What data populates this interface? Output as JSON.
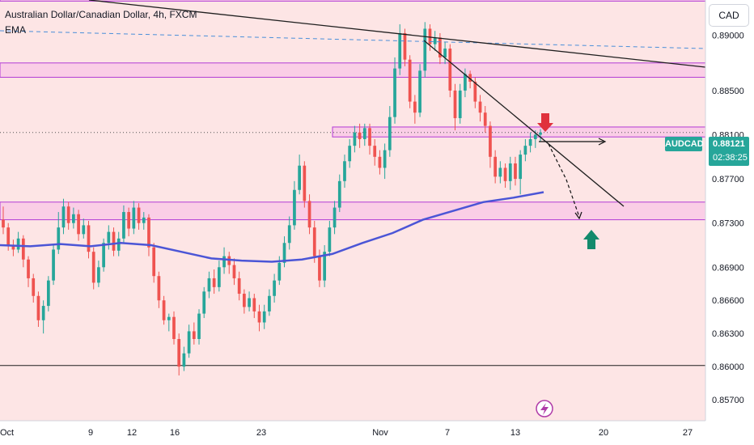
{
  "header": {
    "title": "Australian Dollar/Canadian Dollar, 4h, FXCM",
    "indicator": "EMA"
  },
  "currency_label": "CAD",
  "symbol_tag": "AUDCAD",
  "price_badge": {
    "value": "0.88121",
    "countdown": "02:38:25"
  },
  "colors": {
    "background": "#fde5e5",
    "up": "#26a69a",
    "down": "#ef5350",
    "ema": "#4b55d6",
    "zone_border": "#b23bd6",
    "zone_fill": "#f8c6e6",
    "arrow_down": "#e0313c",
    "arrow_up": "#138a6c",
    "trendline": "#1f1f1f",
    "dashed_level": "#4a8fd9"
  },
  "icons": [
    "red-down-arrow-icon",
    "green-up-arrow-icon",
    "lightning-badge-icon"
  ],
  "chart_data": {
    "type": "candlestick",
    "title": "Australian Dollar/Canadian Dollar, 4h, FXCM",
    "x_tick_labels": [
      "Oct",
      "9",
      "12",
      "16",
      "23",
      "Nov",
      "7",
      "13",
      "20",
      "27"
    ],
    "y_tick_labels": [
      "0.89000",
      "0.88500",
      "0.88100",
      "0.87700",
      "0.87300",
      "0.86900",
      "0.86600",
      "0.86300",
      "0.86000",
      "0.85700"
    ],
    "y_ticks": [
      0.89,
      0.885,
      0.881,
      0.877,
      0.873,
      0.869,
      0.866,
      0.863,
      0.86,
      0.857
    ],
    "ylim": [
      0.8551,
      0.8932
    ],
    "zones": [
      {
        "low": 0.8862,
        "high": 0.8875
      },
      {
        "low": 0.8808,
        "high": 0.8817
      },
      {
        "low": 0.8733,
        "high": 0.8749
      },
      {
        "low": 0.8931,
        "high": 0.8935
      }
    ],
    "horizontal_lines": [
      {
        "price": 0.8601,
        "style": "solid"
      },
      {
        "price": 0.8812,
        "style": "dotted"
      }
    ],
    "ema_series": [
      0.871,
      0.8709,
      0.8711,
      0.8709,
      0.8712,
      0.871,
      0.8704,
      0.8698,
      0.8696,
      0.8695,
      0.8697,
      0.8702,
      0.8712,
      0.8721,
      0.8733,
      0.8741,
      0.8749,
      0.8753,
      0.8758
    ],
    "candles": [
      [
        0.8733,
        0.8726,
        0.8745,
        0.872
      ],
      [
        0.8726,
        0.871,
        0.873,
        0.8705
      ],
      [
        0.871,
        0.8706,
        0.8715,
        0.87
      ],
      [
        0.8706,
        0.8716,
        0.8722,
        0.8703
      ],
      [
        0.8716,
        0.8697,
        0.8719,
        0.869
      ],
      [
        0.8697,
        0.868,
        0.87,
        0.8672
      ],
      [
        0.868,
        0.8664,
        0.8684,
        0.8658
      ],
      [
        0.8664,
        0.8642,
        0.8668,
        0.8636
      ],
      [
        0.8642,
        0.8655,
        0.866,
        0.863
      ],
      [
        0.8655,
        0.8678,
        0.8682,
        0.865
      ],
      [
        0.8678,
        0.8706,
        0.871,
        0.8674
      ],
      [
        0.8706,
        0.8726,
        0.874,
        0.8702
      ],
      [
        0.8726,
        0.8745,
        0.8752,
        0.872
      ],
      [
        0.8745,
        0.873,
        0.8749,
        0.8724
      ],
      [
        0.873,
        0.8738,
        0.8744,
        0.8725
      ],
      [
        0.8738,
        0.872,
        0.8742,
        0.8714
      ],
      [
        0.872,
        0.8728,
        0.8734,
        0.8716
      ],
      [
        0.8728,
        0.8704,
        0.8732,
        0.8698
      ],
      [
        0.8704,
        0.8676,
        0.8708,
        0.867
      ],
      [
        0.8676,
        0.869,
        0.8696,
        0.8672
      ],
      [
        0.869,
        0.8712,
        0.8716,
        0.8686
      ],
      [
        0.8712,
        0.8722,
        0.8728,
        0.8706
      ],
      [
        0.8722,
        0.8705,
        0.8726,
        0.87
      ],
      [
        0.8705,
        0.8716,
        0.8722,
        0.87
      ],
      [
        0.8716,
        0.874,
        0.8746,
        0.8712
      ],
      [
        0.874,
        0.8725,
        0.8744,
        0.8718
      ],
      [
        0.8725,
        0.8744,
        0.875,
        0.872
      ],
      [
        0.8744,
        0.873,
        0.8748,
        0.8724
      ],
      [
        0.873,
        0.8735,
        0.874,
        0.8724
      ],
      [
        0.8735,
        0.8708,
        0.8738,
        0.87
      ],
      [
        0.8708,
        0.8682,
        0.8712,
        0.8676
      ],
      [
        0.8682,
        0.866,
        0.8686,
        0.8653
      ],
      [
        0.866,
        0.8642,
        0.8664,
        0.8638
      ],
      [
        0.8642,
        0.8645,
        0.8648,
        0.8632
      ],
      [
        0.8645,
        0.8625,
        0.865,
        0.862
      ],
      [
        0.8625,
        0.86,
        0.863,
        0.8592
      ],
      [
        0.86,
        0.8612,
        0.8618,
        0.8596
      ],
      [
        0.8612,
        0.8632,
        0.8638,
        0.8608
      ],
      [
        0.8632,
        0.8625,
        0.864,
        0.862
      ],
      [
        0.8625,
        0.8648,
        0.8652,
        0.862
      ],
      [
        0.8648,
        0.8668,
        0.8672,
        0.8644
      ],
      [
        0.8668,
        0.868,
        0.8686,
        0.8662
      ],
      [
        0.868,
        0.8672,
        0.8688,
        0.8666
      ],
      [
        0.8672,
        0.869,
        0.8696,
        0.8668
      ],
      [
        0.869,
        0.87,
        0.8708,
        0.8684
      ],
      [
        0.87,
        0.8692,
        0.8704,
        0.8684
      ],
      [
        0.8692,
        0.868,
        0.8698,
        0.8674
      ],
      [
        0.868,
        0.8666,
        0.8686,
        0.866
      ],
      [
        0.8666,
        0.8654,
        0.867,
        0.8648
      ],
      [
        0.8654,
        0.8662,
        0.8668,
        0.865
      ],
      [
        0.8662,
        0.865,
        0.8666,
        0.8644
      ],
      [
        0.865,
        0.864,
        0.8656,
        0.8632
      ],
      [
        0.864,
        0.865,
        0.8656,
        0.8634
      ],
      [
        0.865,
        0.8664,
        0.867,
        0.8646
      ],
      [
        0.8664,
        0.8678,
        0.8684,
        0.8658
      ],
      [
        0.8678,
        0.8694,
        0.87,
        0.8674
      ],
      [
        0.8694,
        0.8712,
        0.8718,
        0.869
      ],
      [
        0.8712,
        0.8728,
        0.8736,
        0.8706
      ],
      [
        0.8728,
        0.876,
        0.8768,
        0.8724
      ],
      [
        0.876,
        0.8782,
        0.8792,
        0.8756
      ],
      [
        0.8782,
        0.875,
        0.8786,
        0.8744
      ],
      [
        0.875,
        0.8726,
        0.8756,
        0.872
      ],
      [
        0.8726,
        0.87,
        0.8732,
        0.8694
      ],
      [
        0.87,
        0.8678,
        0.8706,
        0.8672
      ],
      [
        0.8678,
        0.8704,
        0.871,
        0.8672
      ],
      [
        0.8704,
        0.8726,
        0.8732,
        0.87
      ],
      [
        0.8726,
        0.8744,
        0.875,
        0.872
      ],
      [
        0.8744,
        0.8768,
        0.8774,
        0.874
      ],
      [
        0.8768,
        0.8786,
        0.8792,
        0.8762
      ],
      [
        0.8786,
        0.88,
        0.8806,
        0.878
      ],
      [
        0.88,
        0.8812,
        0.8818,
        0.8794
      ],
      [
        0.8812,
        0.8806,
        0.882,
        0.8798
      ],
      [
        0.8806,
        0.8816,
        0.882,
        0.88
      ],
      [
        0.8816,
        0.88,
        0.882,
        0.8792
      ],
      [
        0.88,
        0.879,
        0.8806,
        0.8782
      ],
      [
        0.879,
        0.878,
        0.8796,
        0.8774
      ],
      [
        0.878,
        0.8796,
        0.8802,
        0.877
      ],
      [
        0.8796,
        0.8826,
        0.8836,
        0.879
      ],
      [
        0.8826,
        0.887,
        0.888,
        0.882
      ],
      [
        0.887,
        0.8902,
        0.891,
        0.8864
      ],
      [
        0.8902,
        0.8878,
        0.8906,
        0.8872
      ],
      [
        0.8878,
        0.884,
        0.8882,
        0.8834
      ],
      [
        0.884,
        0.883,
        0.8846,
        0.882
      ],
      [
        0.883,
        0.8868,
        0.8874,
        0.8826
      ],
      [
        0.8868,
        0.8906,
        0.8912,
        0.8862
      ],
      [
        0.8906,
        0.8892,
        0.891,
        0.8886
      ],
      [
        0.8892,
        0.8898,
        0.8904,
        0.8886
      ],
      [
        0.8898,
        0.888,
        0.8902,
        0.8874
      ],
      [
        0.888,
        0.8888,
        0.8894,
        0.8874
      ],
      [
        0.8888,
        0.885,
        0.8892,
        0.8844
      ],
      [
        0.885,
        0.8825,
        0.8856,
        0.8814
      ],
      [
        0.8825,
        0.885,
        0.8856,
        0.882
      ],
      [
        0.885,
        0.8865,
        0.887,
        0.8844
      ],
      [
        0.8865,
        0.8858,
        0.8868,
        0.8852
      ],
      [
        0.8858,
        0.884,
        0.8862,
        0.8834
      ],
      [
        0.884,
        0.883,
        0.8846,
        0.8822
      ],
      [
        0.883,
        0.8818,
        0.8836,
        0.8812
      ],
      [
        0.8818,
        0.879,
        0.8822,
        0.878
      ],
      [
        0.879,
        0.8772,
        0.8796,
        0.8766
      ],
      [
        0.8772,
        0.878,
        0.8786,
        0.8766
      ],
      [
        0.878,
        0.8768,
        0.8784,
        0.8762
      ],
      [
        0.8768,
        0.8784,
        0.879,
        0.876
      ],
      [
        0.8784,
        0.877,
        0.879,
        0.8764
      ],
      [
        0.877,
        0.8792,
        0.8796,
        0.8756
      ],
      [
        0.8792,
        0.88,
        0.8806,
        0.8786
      ],
      [
        0.88,
        0.8806,
        0.8812,
        0.8794
      ],
      [
        0.8806,
        0.881,
        0.8814,
        0.8798
      ],
      [
        0.881,
        0.8812,
        0.8815,
        0.8804
      ]
    ]
  }
}
